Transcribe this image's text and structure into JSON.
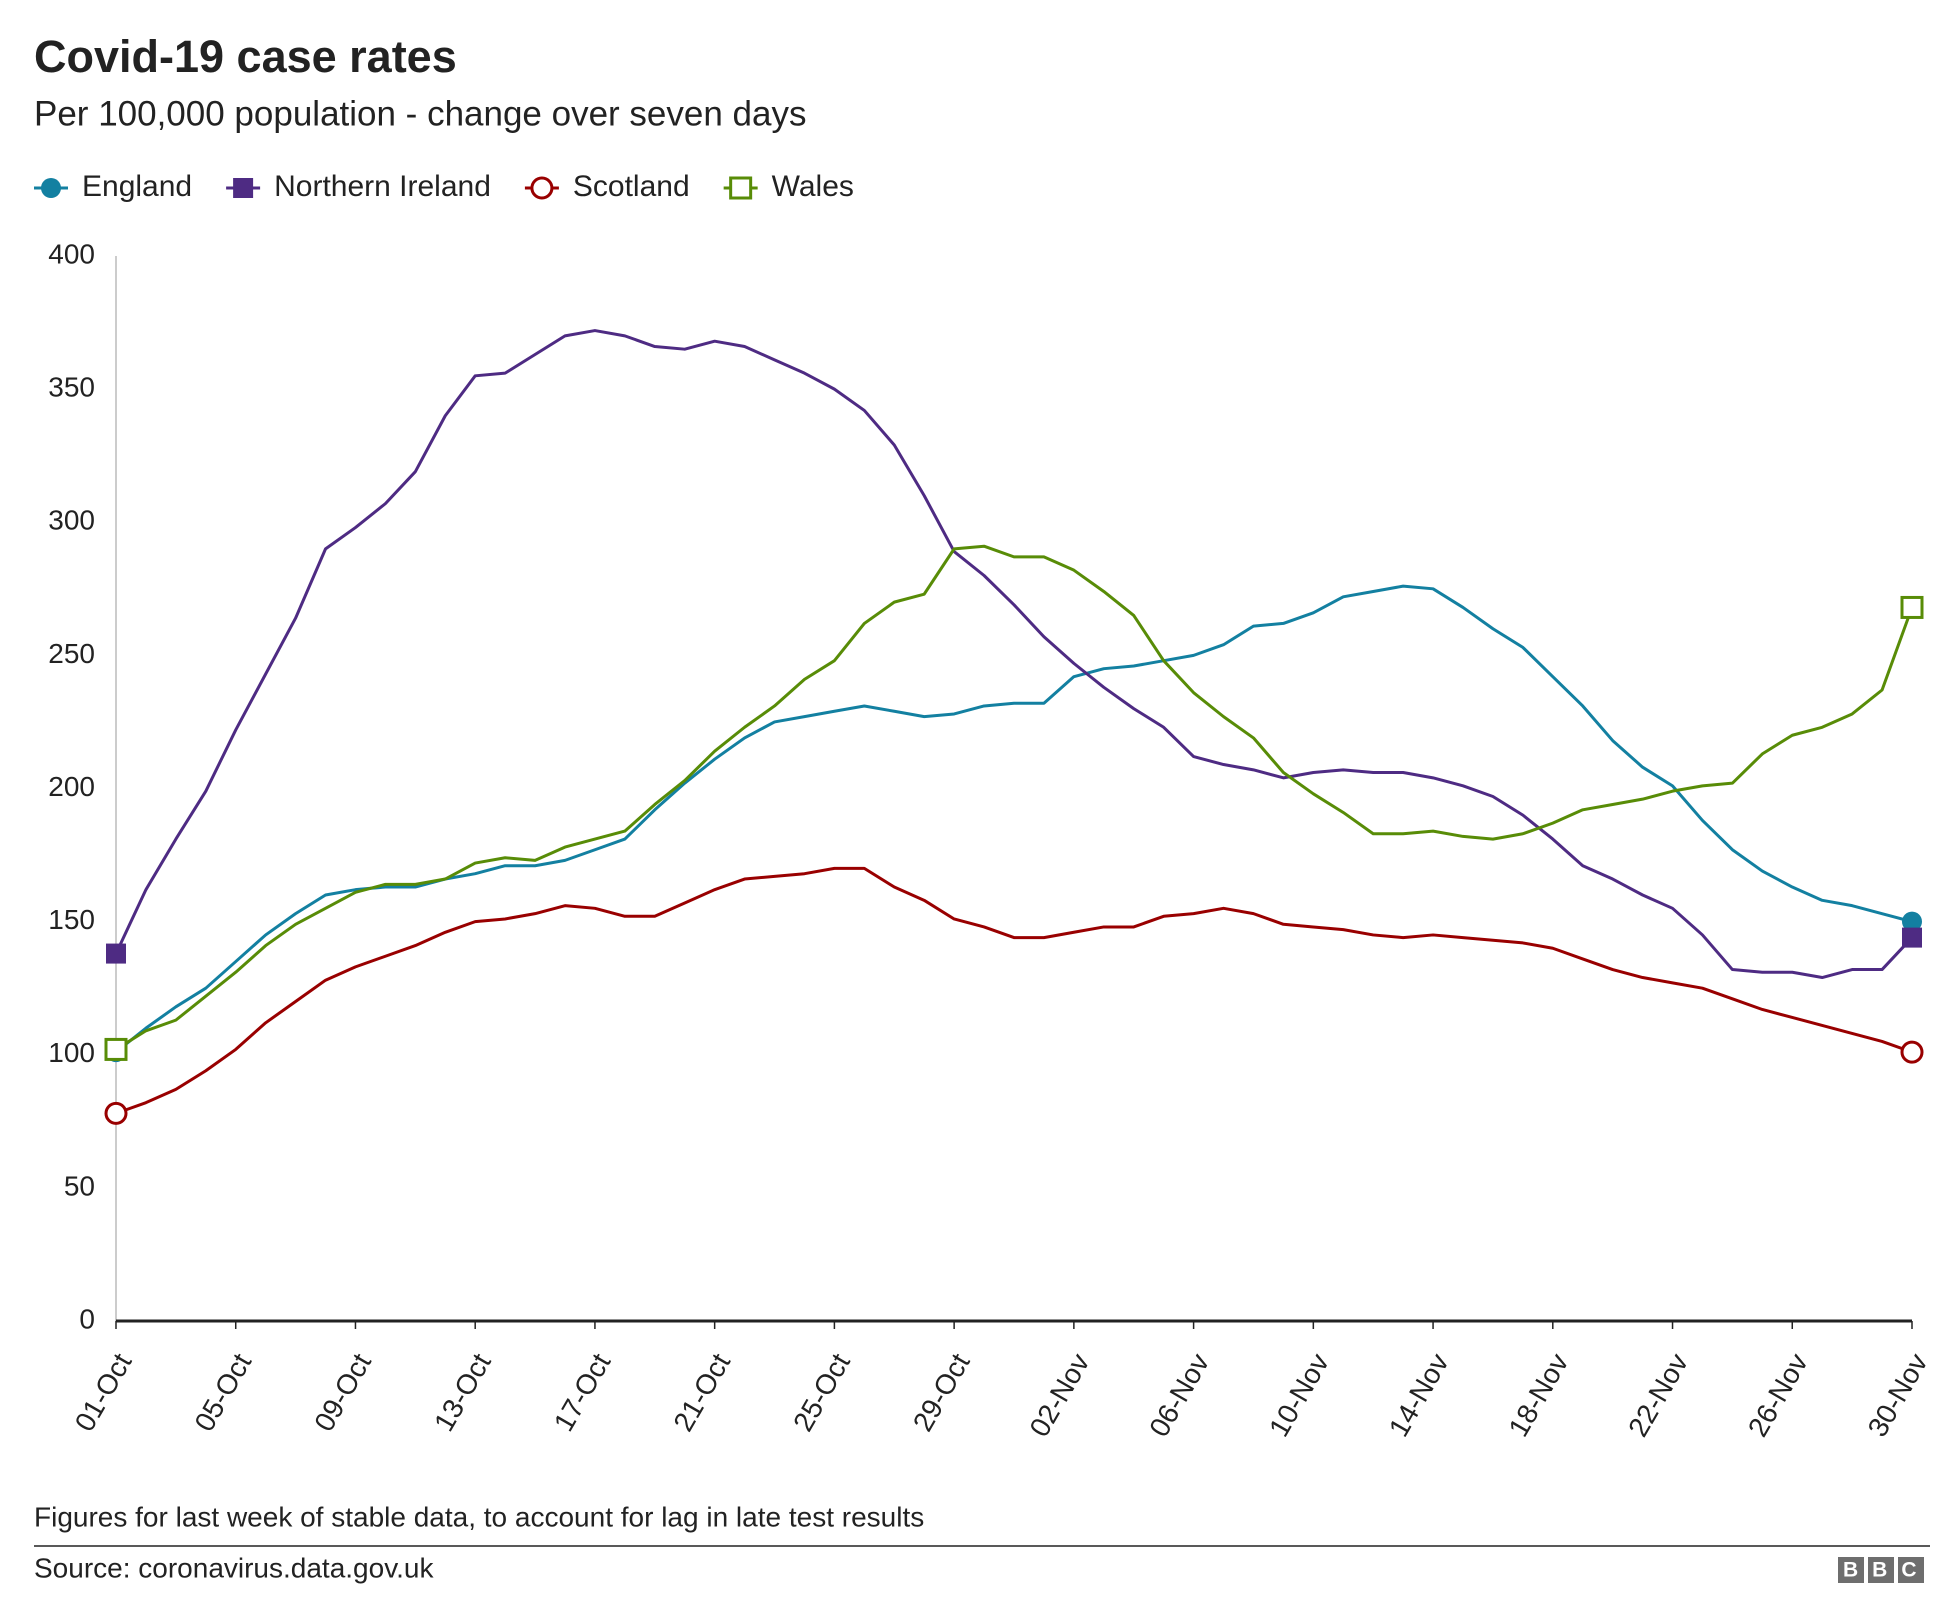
{
  "chart_data": {
    "type": "line",
    "title": "Covid-19 case rates",
    "subtitle": "Per 100,000 population - change over seven days",
    "note": "Figures for last week of stable data, to account for lag in late test results",
    "source": "Source: coronavirus.data.gov.uk",
    "logo": "BBC",
    "categories": [
      "01-Oct",
      null,
      null,
      null,
      "05-Oct",
      null,
      null,
      null,
      "09-Oct",
      null,
      null,
      null,
      "13-Oct",
      null,
      null,
      null,
      "17-Oct",
      null,
      null,
      null,
      "21-Oct",
      null,
      null,
      null,
      "25-Oct",
      null,
      null,
      null,
      "29-Oct",
      null,
      null,
      null,
      "02-Nov",
      null,
      null,
      null,
      "06-Nov",
      null,
      null,
      null,
      "10-Nov",
      null,
      null,
      null,
      "14-Nov",
      null,
      null,
      null,
      "18-Nov",
      null,
      null,
      null,
      "22-Nov",
      null,
      null,
      null,
      "26-Nov",
      null,
      null,
      null,
      "30-Nov"
    ],
    "ylim": [
      0,
      400
    ],
    "yticks": [
      0,
      50,
      100,
      150,
      200,
      250,
      300,
      350,
      400
    ],
    "grid": false,
    "series": [
      {
        "name": "England",
        "color": "#1380a1",
        "marker": "filled-circle",
        "values": [
          101,
          110,
          118,
          125,
          135,
          145,
          153,
          160,
          162,
          163,
          163,
          166,
          168,
          171,
          171,
          173,
          177,
          181,
          192,
          202,
          211,
          219,
          225,
          227,
          229,
          231,
          229,
          227,
          228,
          231,
          232,
          232,
          242,
          245,
          246,
          248,
          250,
          254,
          261,
          262,
          266,
          272,
          274,
          276,
          275,
          268,
          260,
          253,
          242,
          231,
          218,
          208,
          201,
          188,
          177,
          169,
          163,
          158,
          156,
          153,
          150
        ]
      },
      {
        "name": "Northern Ireland",
        "color": "#4e2b83",
        "marker": "filled-square",
        "values": [
          138,
          162,
          181,
          199,
          222,
          243,
          264,
          290,
          298,
          307,
          319,
          340,
          355,
          356,
          363,
          370,
          372,
          370,
          366,
          365,
          368,
          366,
          361,
          356,
          350,
          342,
          329,
          310,
          289,
          280,
          269,
          257,
          247,
          238,
          230,
          223,
          212,
          209,
          207,
          204,
          206,
          207,
          206,
          206,
          204,
          201,
          197,
          190,
          181,
          171,
          166,
          160,
          155,
          145,
          132,
          131,
          131,
          129,
          132,
          132,
          144
        ]
      },
      {
        "name": "Scotland",
        "color": "#990000",
        "marker": "open-circle",
        "values": [
          78,
          82,
          87,
          94,
          102,
          112,
          120,
          128,
          133,
          137,
          141,
          146,
          150,
          151,
          153,
          156,
          155,
          152,
          152,
          157,
          162,
          166,
          167,
          168,
          170,
          170,
          163,
          158,
          151,
          148,
          144,
          144,
          146,
          148,
          148,
          152,
          153,
          155,
          153,
          149,
          148,
          147,
          145,
          144,
          145,
          144,
          143,
          142,
          140,
          136,
          132,
          129,
          127,
          125,
          121,
          117,
          114,
          111,
          108,
          105,
          101
        ]
      },
      {
        "name": "Wales",
        "color": "#588c07",
        "marker": "open-square",
        "values": [
          102,
          109,
          113,
          122,
          131,
          141,
          149,
          155,
          161,
          164,
          164,
          166,
          172,
          174,
          173,
          178,
          181,
          184,
          194,
          203,
          214,
          223,
          231,
          241,
          248,
          262,
          270,
          273,
          290,
          291,
          287,
          287,
          282,
          274,
          265,
          248,
          236,
          227,
          219,
          206,
          198,
          191,
          183,
          183,
          184,
          182,
          181,
          183,
          187,
          192,
          194,
          196,
          199,
          201,
          202,
          213,
          220,
          223,
          228,
          237,
          268
        ]
      }
    ]
  }
}
